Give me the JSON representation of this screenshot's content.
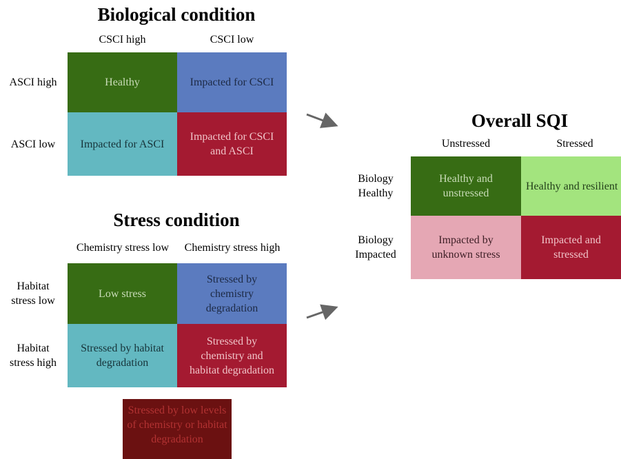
{
  "biological": {
    "title": "Biological condition",
    "columns": [
      "CSCI high",
      "CSCI low"
    ],
    "rows": [
      "ASCI high",
      "ASCI low"
    ],
    "cells": [
      [
        "Healthy",
        "Impacted for CSCI"
      ],
      [
        "Impacted for ASCI",
        "Impacted for CSCI and ASCI"
      ]
    ]
  },
  "stress": {
    "title": "Stress condition",
    "columns": [
      "Chemistry stress low",
      "Chemistry stress high"
    ],
    "rows": [
      "Habitat stress low",
      "Habitat stress high"
    ],
    "cells": [
      [
        "Low stress",
        "Stressed by chemistry degradation"
      ],
      [
        "Stressed by  habitat degradation",
        "Stressed by chemistry and habitat degradation"
      ]
    ],
    "extra": "Stressed by low levels of chemistry or habitat degradation"
  },
  "overall": {
    "title": "Overall SQI",
    "columns": [
      "Unstressed",
      "Stressed"
    ],
    "rows": [
      "Biology Healthy",
      "Biology Impacted"
    ],
    "cells": [
      [
        "Healthy and unstressed",
        "Healthy and resilient"
      ],
      [
        "Impacted by unknown stress",
        "Impacted and stressed"
      ]
    ]
  }
}
